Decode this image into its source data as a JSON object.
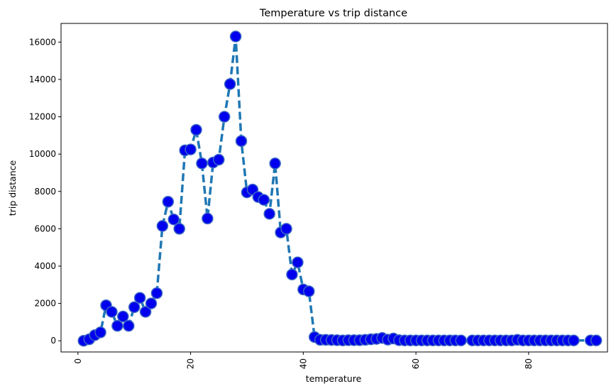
{
  "chart_data": {
    "type": "line",
    "title": "Temperature vs trip distance",
    "xlabel": "temperature",
    "ylabel": "trip distance",
    "xlim": [
      -3,
      94
    ],
    "ylim": [
      -600,
      17000
    ],
    "xticks": [
      0,
      20,
      40,
      60,
      80
    ],
    "yticks": [
      0,
      2000,
      4000,
      6000,
      8000,
      10000,
      12000,
      14000,
      16000
    ],
    "xtick_rotation": -90,
    "grid": false,
    "line_color": "#1f77b4",
    "line_style": "dashed",
    "marker_fill": "#0000ee",
    "marker_edge": "#3a66c4",
    "series": [
      {
        "x": [
          1,
          2,
          3,
          4,
          5,
          6,
          7,
          8,
          9,
          10,
          11,
          12,
          13,
          14,
          15,
          16,
          17,
          18,
          19,
          20,
          21,
          22,
          23,
          24,
          25,
          26,
          27,
          28,
          29,
          30,
          31,
          32,
          33,
          34,
          35,
          36,
          37,
          38,
          39,
          40,
          41,
          42,
          43,
          44,
          45,
          46,
          47,
          48,
          49,
          50,
          51,
          52,
          53,
          54,
          55,
          56,
          57,
          58,
          59,
          60,
          61,
          62,
          63,
          64,
          65,
          66,
          67,
          68,
          70,
          71,
          72,
          73,
          74,
          75,
          76,
          77,
          78,
          79,
          80,
          81,
          82,
          83,
          84,
          85,
          86,
          87,
          88,
          91,
          92
        ],
        "y": [
          0,
          80,
          300,
          450,
          1900,
          1550,
          800,
          1300,
          800,
          1800,
          2300,
          1550,
          2000,
          2550,
          6150,
          7450,
          6500,
          6000,
          10200,
          10250,
          11300,
          9500,
          6550,
          9550,
          9700,
          12000,
          13750,
          16300,
          10700,
          7950,
          8100,
          7700,
          7550,
          6800,
          9500,
          5800,
          6000,
          3550,
          4200,
          2750,
          2650,
          200,
          50,
          50,
          40,
          30,
          20,
          30,
          30,
          30,
          50,
          80,
          100,
          150,
          60,
          120,
          30,
          20,
          20,
          20,
          20,
          20,
          20,
          20,
          20,
          20,
          20,
          20,
          20,
          20,
          20,
          20,
          20,
          20,
          20,
          20,
          50,
          20,
          20,
          20,
          20,
          20,
          20,
          20,
          20,
          20,
          20,
          20,
          20
        ]
      }
    ]
  }
}
